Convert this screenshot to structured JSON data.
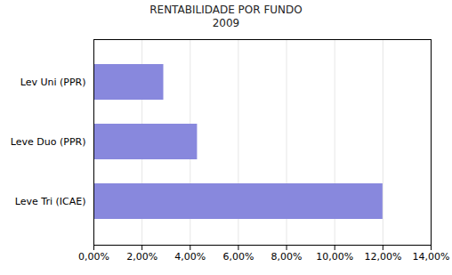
{
  "chart_data": {
    "type": "bar",
    "title": "RENTABILIDADE POR FUNDO",
    "subtitle": "2009",
    "orientation": "horizontal",
    "categories": [
      "Leve Tri (ICAE)",
      "Leve Duo (PPR)",
      "Lev Uni (PPR)"
    ],
    "values": [
      0.12,
      0.043,
      0.029
    ],
    "color": "#8888dd",
    "xlim": [
      0,
      0.14
    ],
    "xticks": [
      {
        "value": 0.0,
        "label": "0,00%"
      },
      {
        "value": 0.02,
        "label": "2,00%"
      },
      {
        "value": 0.04,
        "label": "4,00%"
      },
      {
        "value": 0.06,
        "label": "6,00%"
      },
      {
        "value": 0.08,
        "label": "8,00%"
      },
      {
        "value": 0.1,
        "label": "10,00%"
      },
      {
        "value": 0.12,
        "label": "12,00%"
      },
      {
        "value": 0.14,
        "label": "14,00%"
      }
    ],
    "grid": true
  }
}
